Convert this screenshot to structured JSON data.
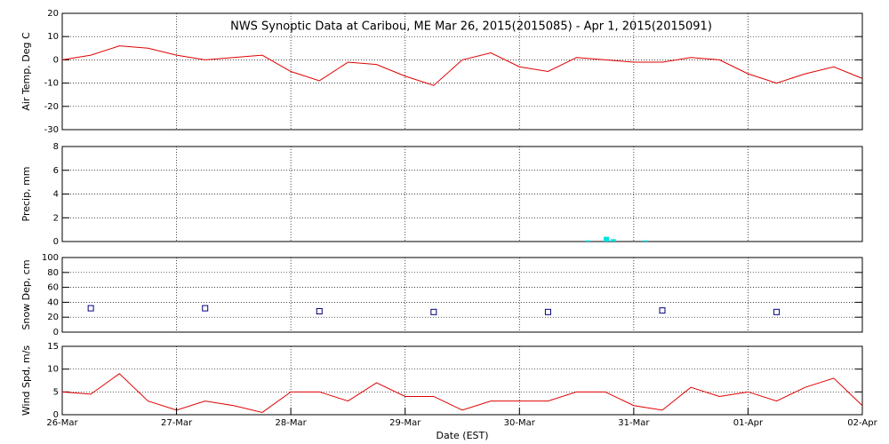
{
  "chart_data": [
    {
      "type": "line",
      "title": "NWS Synoptic Data at Caribou, ME   Mar 26, 2015(2015085) - Apr  1, 2015(2015091)",
      "ylabel": "Air Temp, Deg C",
      "color": "#e00000",
      "x": [
        0,
        0.25,
        0.5,
        0.75,
        1,
        1.25,
        1.5,
        1.75,
        2,
        2.25,
        2.5,
        2.75,
        3,
        3.25,
        3.5,
        3.75,
        4,
        4.25,
        4.5,
        4.75,
        5,
        5.25,
        5.5,
        5.75,
        6,
        6.25,
        6.5,
        6.75,
        7
      ],
      "values": [
        0,
        2,
        6,
        5,
        2,
        0,
        1,
        2,
        -5,
        -9,
        -1,
        -2,
        -7,
        -11,
        0,
        3,
        -3,
        -5,
        1,
        0,
        -1,
        -1,
        1,
        0,
        -6,
        -10,
        -6,
        -3,
        -8
      ],
      "xlim": [
        0,
        7
      ],
      "ylim": [
        -30,
        20
      ],
      "yticks": [
        -30,
        -20,
        -10,
        0,
        10,
        20
      ],
      "grid": true
    },
    {
      "type": "bar",
      "ylabel": "Precip, mm",
      "color": "#00e0e0",
      "x": [
        4.6,
        4.76,
        4.82,
        5.1
      ],
      "values": [
        0.1,
        0.4,
        0.2,
        0.1
      ],
      "xlim": [
        0,
        7
      ],
      "ylim": [
        0,
        8
      ],
      "yticks": [
        0,
        2,
        4,
        6,
        8
      ],
      "grid": true
    },
    {
      "type": "scatter",
      "ylabel": "Snow Dep, cm",
      "color": "#000080",
      "x": [
        0.25,
        1.25,
        2.25,
        3.25,
        4.25,
        5.25,
        6.25
      ],
      "values": [
        32,
        32,
        28,
        27,
        27,
        29,
        27
      ],
      "xlim": [
        0,
        7
      ],
      "ylim": [
        0,
        100
      ],
      "yticks": [
        0,
        20,
        40,
        60,
        80,
        100
      ],
      "grid": true
    },
    {
      "type": "line",
      "ylabel": "Wind Spd, m/s",
      "xlabel": "Date (EST)",
      "color": "#e00000",
      "x": [
        0,
        0.25,
        0.5,
        0.75,
        1,
        1.25,
        1.5,
        1.75,
        2,
        2.25,
        2.5,
        2.75,
        3,
        3.25,
        3.5,
        3.75,
        4,
        4.25,
        4.5,
        4.75,
        5,
        5.25,
        5.5,
        5.75,
        6,
        6.25,
        6.5,
        6.75,
        7
      ],
      "values": [
        5,
        4.5,
        9,
        3,
        1,
        3,
        2,
        0.5,
        5,
        5,
        3,
        7,
        4,
        4,
        1,
        3,
        3,
        3,
        5,
        5,
        2,
        1,
        6,
        4,
        5,
        3,
        6,
        8,
        2
      ],
      "xlim": [
        0,
        7
      ],
      "ylim": [
        0,
        15
      ],
      "yticks": [
        0,
        5,
        10,
        15
      ],
      "grid": true,
      "xticks": [
        {
          "value": 0,
          "label": "26-Mar"
        },
        {
          "value": 1,
          "label": "27-Mar"
        },
        {
          "value": 2,
          "label": "28-Mar"
        },
        {
          "value": 3,
          "label": "29-Mar"
        },
        {
          "value": 4,
          "label": "30-Mar"
        },
        {
          "value": 5,
          "label": "31-Mar"
        },
        {
          "value": 6,
          "label": "01-Apr"
        },
        {
          "value": 7,
          "label": "02-Apr"
        }
      ]
    }
  ]
}
